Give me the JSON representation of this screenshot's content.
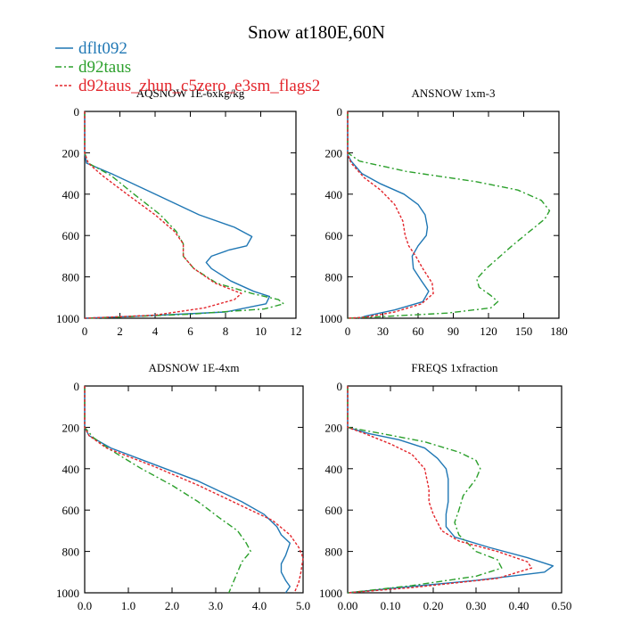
{
  "title": "Snow at180E,60N",
  "colors": {
    "series_0": "#1f77b4",
    "series_1": "#2ca02c",
    "series_2": "#e3262c"
  },
  "legend": {
    "placement": "top-left",
    "items": [
      {
        "name": "dflt092",
        "color": "#1f77b4",
        "dash": "solid"
      },
      {
        "name": "d92taus",
        "color": "#2ca02c",
        "dash": "dash-dot"
      },
      {
        "name": "d92taus_zhun_c5zero_e3sm_flags2",
        "color": "#e3262c",
        "dash": "dotted"
      }
    ]
  },
  "chart_data": [
    {
      "type": "line",
      "title": "AQSNOW  1E-6xkg/kg",
      "xlim": [
        0,
        12
      ],
      "ylim": [
        1000,
        0
      ],
      "y_inverted": true,
      "xticks": [
        "0",
        "2",
        "4",
        "6",
        "8",
        "10",
        "12"
      ],
      "yticks": [
        "0",
        "200",
        "400",
        "600",
        "800",
        "1000"
      ],
      "series": [
        {
          "name": "dflt092",
          "points": [
            [
              0,
              0
            ],
            [
              0,
              200
            ],
            [
              0.1,
              250
            ],
            [
              1.5,
              300
            ],
            [
              4,
              400
            ],
            [
              6.5,
              500
            ],
            [
              8.5,
              560
            ],
            [
              9.5,
              605
            ],
            [
              9.2,
              650
            ],
            [
              8.2,
              670
            ],
            [
              7.2,
              700
            ],
            [
              6.9,
              730
            ],
            [
              7.2,
              760
            ],
            [
              8.3,
              820
            ],
            [
              9.6,
              870
            ],
            [
              10.5,
              895
            ],
            [
              10.3,
              930
            ],
            [
              8,
              970
            ],
            [
              3,
              990
            ],
            [
              0,
              1000
            ]
          ]
        },
        {
          "name": "d92taus",
          "points": [
            [
              0,
              0
            ],
            [
              0,
              200
            ],
            [
              0.2,
              250
            ],
            [
              1.5,
              310
            ],
            [
              2.8,
              400
            ],
            [
              4.3,
              500
            ],
            [
              5.2,
              580
            ],
            [
              5.6,
              640
            ],
            [
              5.6,
              700
            ],
            [
              6.2,
              760
            ],
            [
              7.5,
              830
            ],
            [
              9.5,
              880
            ],
            [
              11,
              910
            ],
            [
              11.3,
              930
            ],
            [
              10.2,
              955
            ],
            [
              6,
              980
            ],
            [
              1,
              998
            ],
            [
              0,
              1000
            ]
          ]
        },
        {
          "name": "d92taus_zhun_c5zero_e3sm_flags2",
          "points": [
            [
              0,
              0
            ],
            [
              0,
              200
            ],
            [
              0.2,
              250
            ],
            [
              1,
              310
            ],
            [
              2.4,
              400
            ],
            [
              4,
              500
            ],
            [
              5.1,
              580
            ],
            [
              5.6,
              640
            ],
            [
              5.6,
              700
            ],
            [
              6.2,
              760
            ],
            [
              7.4,
              830
            ],
            [
              8.9,
              880
            ],
            [
              8.5,
              910
            ],
            [
              6.8,
              950
            ],
            [
              4,
              985
            ],
            [
              0,
              1000
            ]
          ]
        }
      ]
    },
    {
      "type": "line",
      "title": "ANSNOW  1xm-3",
      "xlim": [
        0,
        180
      ],
      "ylim": [
        1000,
        0
      ],
      "y_inverted": true,
      "xticks": [
        "0",
        "30",
        "60",
        "90",
        "120",
        "150",
        "180"
      ],
      "yticks": [
        "0",
        "200",
        "400",
        "600",
        "800",
        "1000"
      ],
      "series": [
        {
          "name": "dflt092",
          "points": [
            [
              0,
              0
            ],
            [
              0,
              210
            ],
            [
              3,
              240
            ],
            [
              12,
              300
            ],
            [
              28,
              350
            ],
            [
              48,
              400
            ],
            [
              60,
              450
            ],
            [
              66,
              500
            ],
            [
              68,
              560
            ],
            [
              67,
              600
            ],
            [
              60,
              650
            ],
            [
              55,
              700
            ],
            [
              56,
              760
            ],
            [
              63,
              820
            ],
            [
              69,
              870
            ],
            [
              64,
              920
            ],
            [
              40,
              960
            ],
            [
              15,
              990
            ],
            [
              10,
              1000
            ]
          ]
        },
        {
          "name": "d92taus",
          "points": [
            [
              0,
              0
            ],
            [
              0,
              200
            ],
            [
              10,
              240
            ],
            [
              50,
              290
            ],
            [
              110,
              340
            ],
            [
              145,
              380
            ],
            [
              165,
              430
            ],
            [
              172,
              480
            ],
            [
              168,
              520
            ],
            [
              155,
              580
            ],
            [
              140,
              650
            ],
            [
              130,
              700
            ],
            [
              118,
              760
            ],
            [
              110,
              810
            ],
            [
              112,
              850
            ],
            [
              122,
              890
            ],
            [
              128,
              920
            ],
            [
              122,
              950
            ],
            [
              85,
              975
            ],
            [
              30,
              992
            ],
            [
              0,
              1000
            ]
          ]
        },
        {
          "name": "d92taus_zhun_c5zero_e3sm_flags2",
          "points": [
            [
              0,
              0
            ],
            [
              0,
              210
            ],
            [
              3,
              250
            ],
            [
              14,
              320
            ],
            [
              28,
              380
            ],
            [
              40,
              450
            ],
            [
              47,
              530
            ],
            [
              49,
              600
            ],
            [
              52,
              650
            ],
            [
              58,
              700
            ],
            [
              64,
              760
            ],
            [
              72,
              830
            ],
            [
              73,
              880
            ],
            [
              63,
              930
            ],
            [
              40,
              970
            ],
            [
              15,
              995
            ],
            [
              0,
              1000
            ]
          ]
        }
      ]
    },
    {
      "type": "line",
      "title": "ADSNOW  1E-4xm",
      "xlim": [
        0,
        5
      ],
      "ylim": [
        1000,
        0
      ],
      "y_inverted": true,
      "xticks": [
        "0.0",
        "1.0",
        "2.0",
        "3.0",
        "4.0",
        "5.0"
      ],
      "yticks": [
        "0",
        "200",
        "400",
        "600",
        "800",
        "1000"
      ],
      "series": [
        {
          "name": "dflt092",
          "points": [
            [
              0,
              0
            ],
            [
              0,
              200
            ],
            [
              0.1,
              240
            ],
            [
              0.6,
              300
            ],
            [
              1.6,
              380
            ],
            [
              2.6,
              460
            ],
            [
              3.6,
              560
            ],
            [
              4.1,
              620
            ],
            [
              4.4,
              680
            ],
            [
              4.5,
              720
            ],
            [
              4.7,
              760
            ],
            [
              4.6,
              820
            ],
            [
              4.5,
              860
            ],
            [
              4.5,
              900
            ],
            [
              4.6,
              940
            ],
            [
              4.7,
              970
            ],
            [
              4.6,
              1000
            ]
          ]
        },
        {
          "name": "d92taus",
          "points": [
            [
              0,
              0
            ],
            [
              0,
              200
            ],
            [
              0.2,
              250
            ],
            [
              0.6,
              310
            ],
            [
              1.3,
              400
            ],
            [
              2,
              480
            ],
            [
              2.6,
              560
            ],
            [
              3.1,
              640
            ],
            [
              3.5,
              700
            ],
            [
              3.7,
              760
            ],
            [
              3.8,
              800
            ],
            [
              3.6,
              850
            ],
            [
              3.5,
              900
            ],
            [
              3.4,
              950
            ],
            [
              3.3,
              1000
            ]
          ]
        },
        {
          "name": "d92taus_zhun_c5zero_e3sm_flags2",
          "points": [
            [
              0,
              0
            ],
            [
              0,
              200
            ],
            [
              0.1,
              240
            ],
            [
              0.5,
              300
            ],
            [
              1.6,
              390
            ],
            [
              2.6,
              480
            ],
            [
              3.6,
              580
            ],
            [
              4.3,
              650
            ],
            [
              4.7,
              720
            ],
            [
              4.9,
              780
            ],
            [
              5,
              830
            ],
            [
              4.95,
              900
            ],
            [
              4.9,
              950
            ],
            [
              4.8,
              1000
            ]
          ]
        }
      ]
    },
    {
      "type": "line",
      "title": "FREQS  1xfraction",
      "xlim": [
        0,
        0.5
      ],
      "ylim": [
        1000,
        0
      ],
      "y_inverted": true,
      "xticks": [
        "0.00",
        "0.10",
        "0.20",
        "0.30",
        "0.40",
        "0.50"
      ],
      "yticks": [
        "0",
        "200",
        "400",
        "600",
        "800",
        "1000"
      ],
      "series": [
        {
          "name": "dflt092",
          "points": [
            [
              0,
              0
            ],
            [
              0,
              200
            ],
            [
              0.05,
              230
            ],
            [
              0.12,
              260
            ],
            [
              0.18,
              300
            ],
            [
              0.21,
              350
            ],
            [
              0.23,
              400
            ],
            [
              0.235,
              450
            ],
            [
              0.235,
              500
            ],
            [
              0.235,
              560
            ],
            [
              0.23,
              620
            ],
            [
              0.23,
              680
            ],
            [
              0.25,
              730
            ],
            [
              0.33,
              780
            ],
            [
              0.42,
              830
            ],
            [
              0.48,
              870
            ],
            [
              0.46,
              900
            ],
            [
              0.3,
              940
            ],
            [
              0.12,
              975
            ],
            [
              0,
              1000
            ]
          ]
        },
        {
          "name": "d92taus",
          "points": [
            [
              0,
              0
            ],
            [
              0,
              200
            ],
            [
              0.08,
              230
            ],
            [
              0.18,
              270
            ],
            [
              0.26,
              320
            ],
            [
              0.3,
              360
            ],
            [
              0.31,
              400
            ],
            [
              0.3,
              450
            ],
            [
              0.27,
              530
            ],
            [
              0.26,
              600
            ],
            [
              0.25,
              660
            ],
            [
              0.26,
              720
            ],
            [
              0.3,
              800
            ],
            [
              0.35,
              840
            ],
            [
              0.36,
              880
            ],
            [
              0.3,
              920
            ],
            [
              0.15,
              965
            ],
            [
              0,
              1000
            ]
          ]
        },
        {
          "name": "d92taus_zhun_c5zero_e3sm_flags2",
          "points": [
            [
              0,
              0
            ],
            [
              0,
              200
            ],
            [
              0.04,
              230
            ],
            [
              0.1,
              280
            ],
            [
              0.15,
              330
            ],
            [
              0.18,
              400
            ],
            [
              0.19,
              500
            ],
            [
              0.19,
              560
            ],
            [
              0.2,
              620
            ],
            [
              0.22,
              700
            ],
            [
              0.26,
              750
            ],
            [
              0.35,
              800
            ],
            [
              0.42,
              850
            ],
            [
              0.43,
              880
            ],
            [
              0.35,
              930
            ],
            [
              0.15,
              975
            ],
            [
              0,
              1000
            ]
          ]
        }
      ]
    }
  ]
}
